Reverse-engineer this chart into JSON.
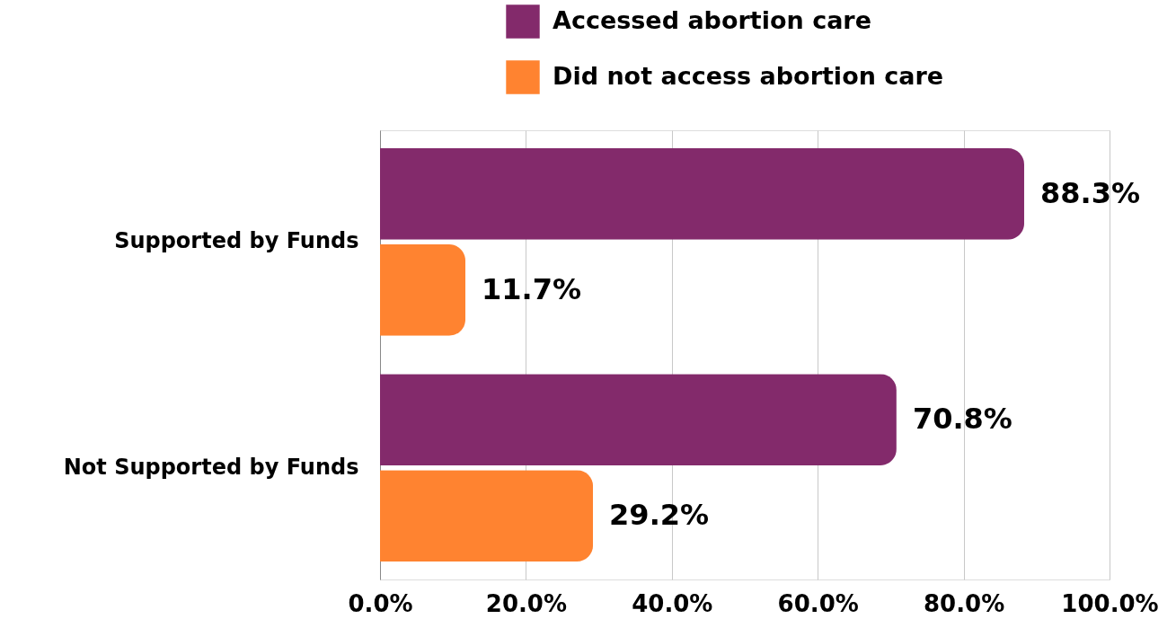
{
  "chart_data": {
    "type": "bar",
    "orientation": "horizontal",
    "categories": [
      "Supported by Funds",
      "Not Supported by Funds"
    ],
    "series": [
      {
        "name": "Accessed abortion care",
        "color": "#832a6b",
        "values": [
          88.3,
          70.8
        ],
        "value_labels": [
          "88.3%",
          "70.8%"
        ]
      },
      {
        "name": "Did not access abortion care",
        "color": "#ff8330",
        "values": [
          11.7,
          29.2
        ],
        "value_labels": [
          "11.7%",
          "29.2%"
        ]
      }
    ],
    "xlim": [
      0,
      100
    ],
    "xticks": [
      {
        "value": 0,
        "label": "0.0%"
      },
      {
        "value": 20,
        "label": "20.0%"
      },
      {
        "value": 40,
        "label": "40.0%"
      },
      {
        "value": 60,
        "label": "60.0%"
      },
      {
        "value": 80,
        "label": "80.0%"
      },
      {
        "value": 100,
        "label": "100.0%"
      }
    ],
    "grid": "x",
    "legend": "top"
  }
}
